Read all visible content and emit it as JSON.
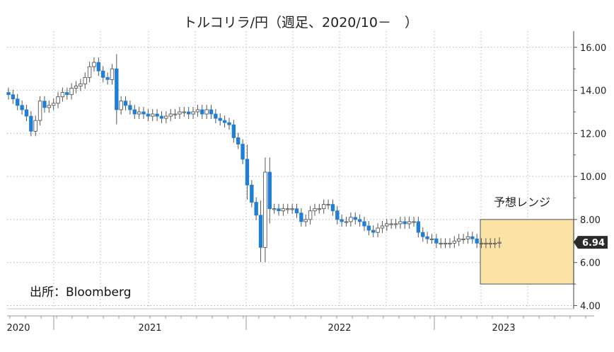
{
  "chart_data": {
    "type": "candlestick",
    "title": "トルコリラ/円（週足、2020/10－　）",
    "source": "出所：Bloomberg",
    "y_ticks": [
      "16.00",
      "14.00",
      "12.00",
      "10.00",
      "8.00",
      "6.00",
      "4.00"
    ],
    "y_tick_values": [
      16,
      14,
      12,
      10,
      8,
      6,
      4
    ],
    "ylim": [
      3.85,
      16.75
    ],
    "x_labels": [
      "2020",
      "2021",
      "2022",
      "2023"
    ],
    "x_start": "2020-10",
    "last_value": 6.94,
    "last_value_label": "6.94",
    "forecast_range": {
      "label": "予想レンジ",
      "low": 5.0,
      "high": 8.0
    },
    "grid": true,
    "colors": {
      "up": "#ffffff",
      "down": "#1f7fd6",
      "wick": "#555555",
      "band_fill": "#fbe3a5",
      "band_stroke": "#6b6b6b",
      "last_badge": "#2b2b2b"
    },
    "weekly_close": [
      13.8,
      13.6,
      13.3,
      13.1,
      12.8,
      12.1,
      12.6,
      13.5,
      13.2,
      13.3,
      13.4,
      13.7,
      13.9,
      13.8,
      14.1,
      14.2,
      14.3,
      14.6,
      15.1,
      15.3,
      14.9,
      14.6,
      14.5,
      15.0,
      13.1,
      13.5,
      13.3,
      13.1,
      12.9,
      13.0,
      12.9,
      12.8,
      12.9,
      12.8,
      12.7,
      12.8,
      12.9,
      12.9,
      13.0,
      13.0,
      12.9,
      13.0,
      13.1,
      12.9,
      13.1,
      12.9,
      12.7,
      12.6,
      12.5,
      12.4,
      11.8,
      11.5,
      10.8,
      9.6,
      8.8,
      8.2,
      6.7,
      10.2,
      8.5,
      8.5,
      8.4,
      8.5,
      8.5,
      8.5,
      8.3,
      7.9,
      8.0,
      8.4,
      8.5,
      8.5,
      8.7,
      8.7,
      8.4,
      8.0,
      7.9,
      7.9,
      8.1,
      8.0,
      7.9,
      7.7,
      7.5,
      7.4,
      7.6,
      7.7,
      7.8,
      7.8,
      7.8,
      7.9,
      7.8,
      7.9,
      7.9,
      7.4,
      7.2,
      7.1,
      7.1,
      6.9,
      6.9,
      6.9,
      6.9,
      7.0,
      7.1,
      7.1,
      7.2,
      7.1,
      6.9,
      6.9,
      6.9,
      6.9,
      6.9,
      6.94
    ]
  }
}
